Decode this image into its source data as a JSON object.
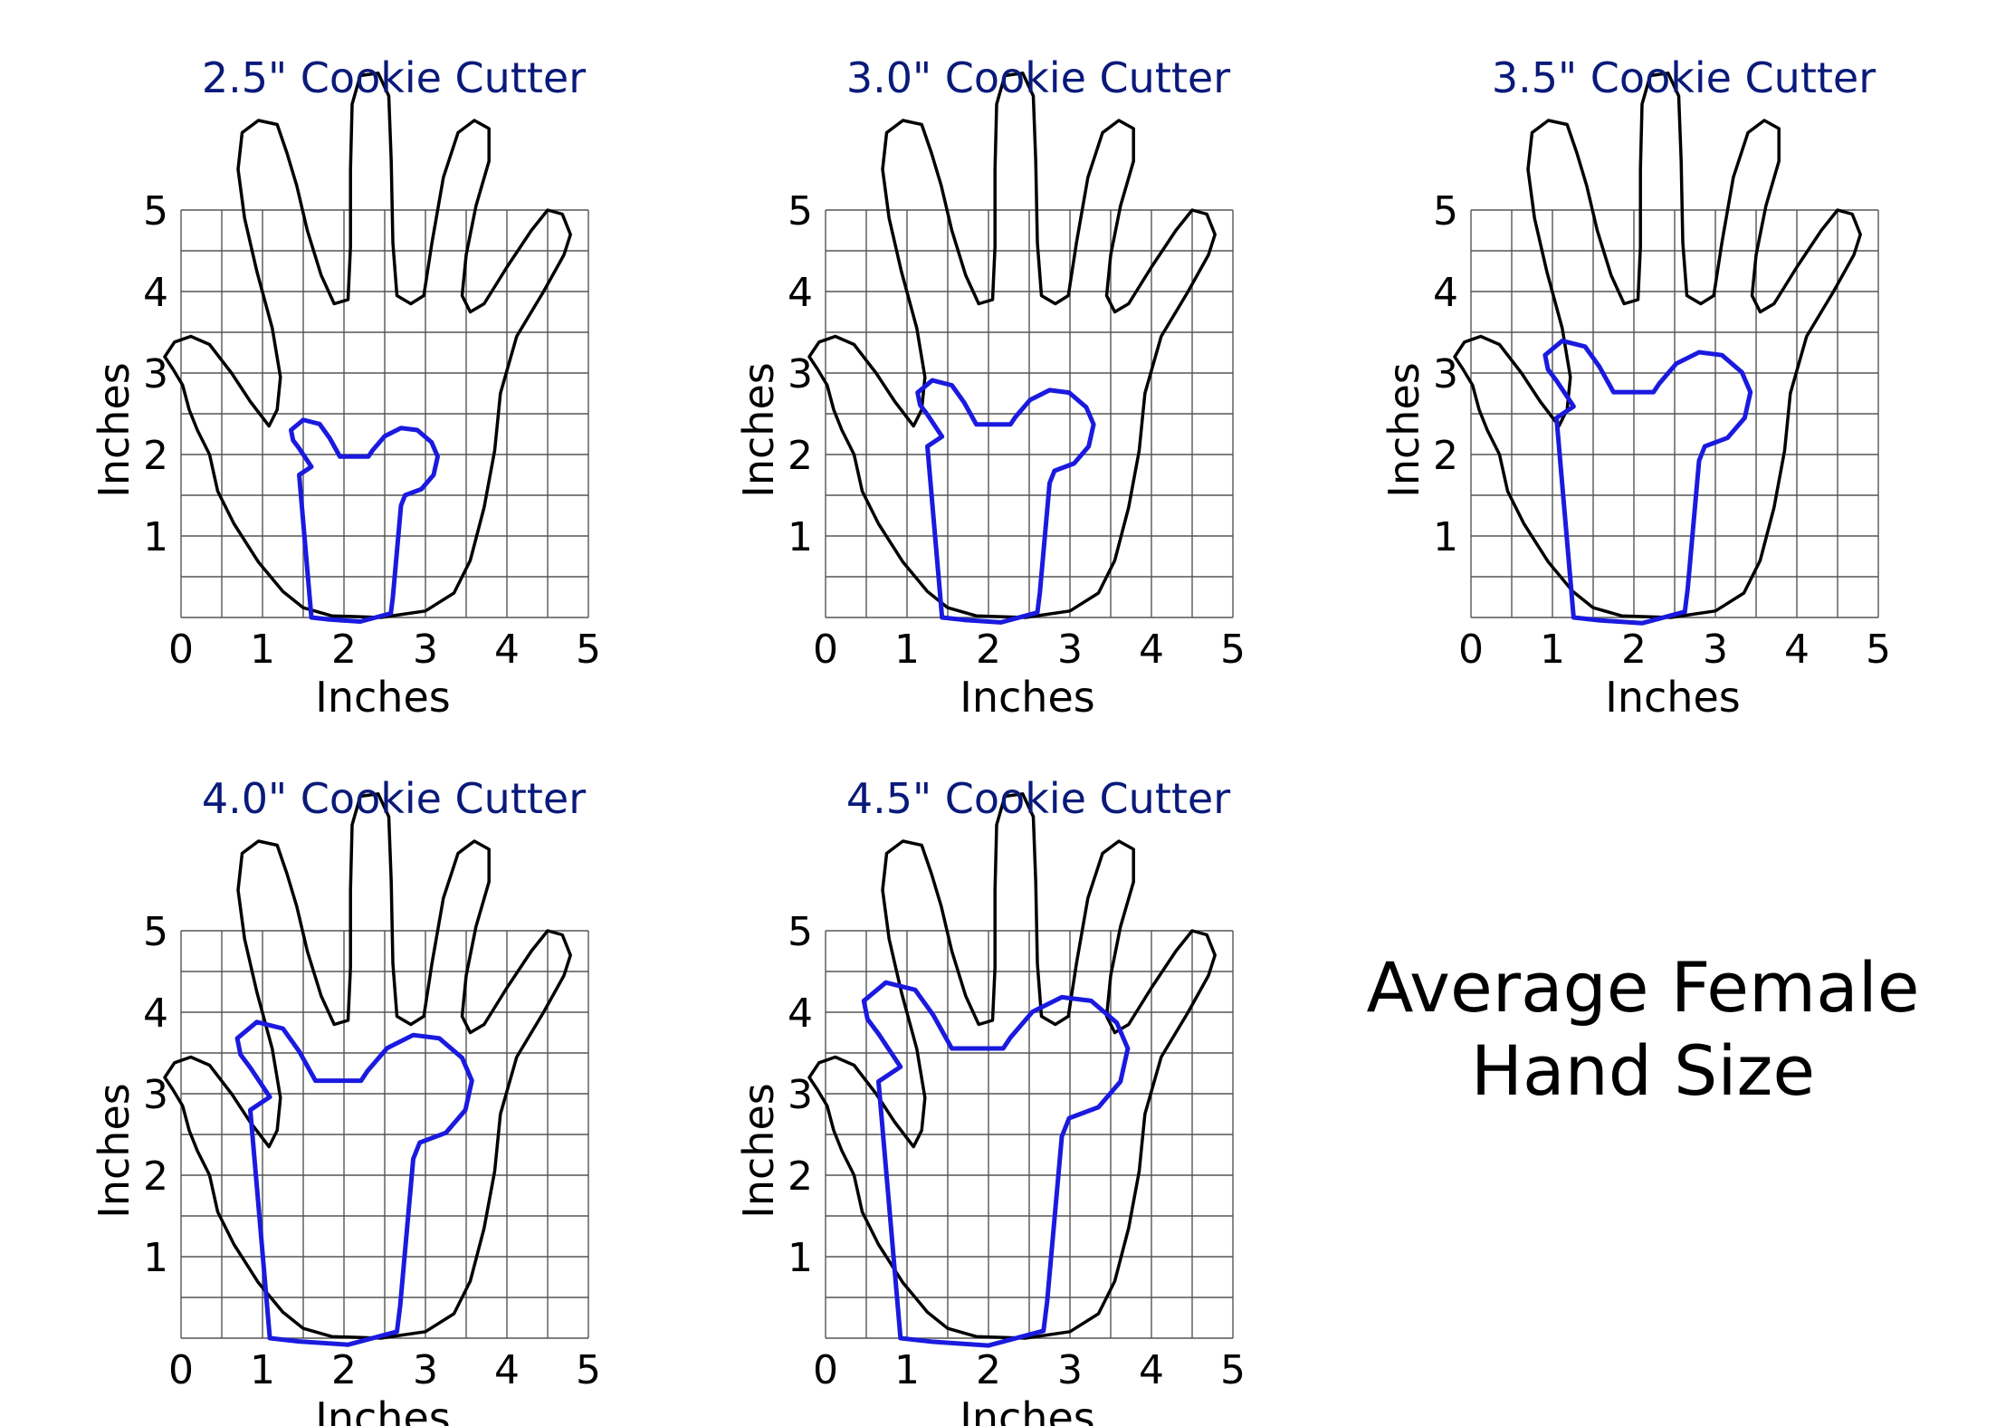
{
  "caption": {
    "line1": "Average Female",
    "line2": "Hand Size"
  },
  "axis": {
    "x_label": "Inches",
    "y_label": "Inches",
    "x_ticks": [
      "0",
      "1",
      "2",
      "3",
      "4",
      "5"
    ],
    "y_ticks": [
      "1",
      "2",
      "3",
      "4",
      "5"
    ]
  },
  "colors": {
    "hand_outline": "#000000",
    "cutter_outline": "#1a1adf",
    "title": "#0a1a7a",
    "grid": "#555555"
  },
  "panels": [
    {
      "title": "2.5\" Cookie Cutter",
      "cutter_size_in": 2.5
    },
    {
      "title": "3.0\" Cookie Cutter",
      "cutter_size_in": 3.0
    },
    {
      "title": "3.5\" Cookie Cutter",
      "cutter_size_in": 3.5
    },
    {
      "title": "4.0\" Cookie Cutter",
      "cutter_size_in": 4.0
    },
    {
      "title": "4.5\" Cookie Cutter",
      "cutter_size_in": 4.5
    }
  ]
}
